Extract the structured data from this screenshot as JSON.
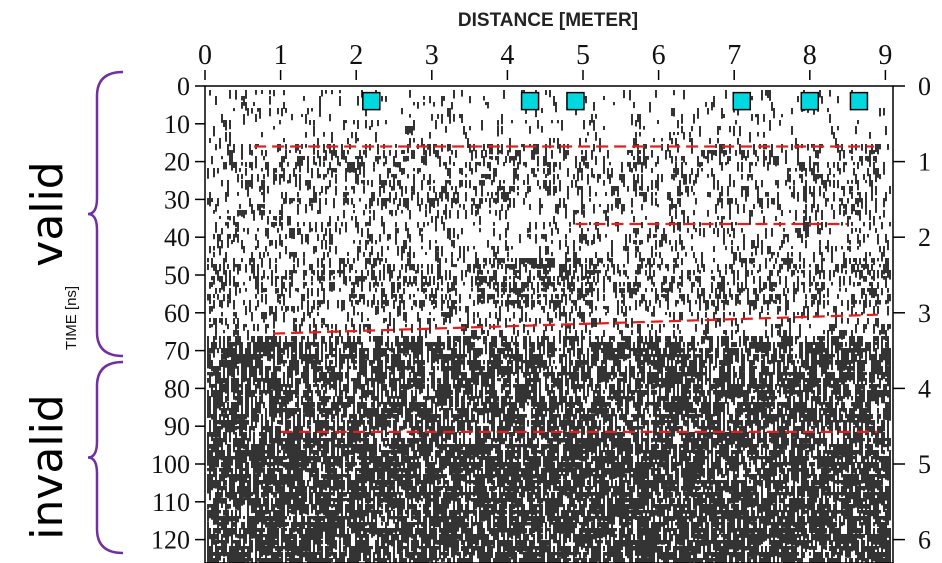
{
  "chart_data": {
    "type": "radargram",
    "xlabel": "DISTANCE [METER]",
    "ylabel": "TIME [ns]",
    "xlim": [
      0,
      9
    ],
    "ylim": [
      0,
      120
    ],
    "x_ticks": [
      "0",
      "1",
      "2",
      "3",
      "4",
      "5",
      "6",
      "7",
      "8",
      "9"
    ],
    "y_ticks": [
      "0",
      "10",
      "20",
      "30",
      "40",
      "50",
      "60",
      "70",
      "80",
      "90",
      "100",
      "110",
      "120"
    ],
    "right_ticks": [
      {
        "label": "0",
        "y": 0
      },
      {
        "label": "1",
        "y": 20
      },
      {
        "label": "2",
        "y": 40
      },
      {
        "label": "3",
        "y": 60
      },
      {
        "label": "4",
        "y": 80
      },
      {
        "label": "5",
        "y": 100
      },
      {
        "label": "6",
        "y": 120
      }
    ],
    "markers": {
      "color": "#00d8e0",
      "y": 4,
      "x": [
        2.2,
        4.3,
        4.9,
        7.1,
        8.0,
        8.65
      ]
    },
    "reference_lines": {
      "color": "#e02020",
      "style": "dashed",
      "lines": [
        {
          "x": [
            0.65,
            8.85
          ],
          "y": [
            16,
            16
          ]
        },
        {
          "x": [
            4.9,
            8.5
          ],
          "y": [
            36.5,
            36.5
          ]
        },
        {
          "x": [
            0.9,
            8.9
          ],
          "y": [
            65.5,
            60.5
          ]
        },
        {
          "x": [
            1.0,
            8.9
          ],
          "y": [
            91.5,
            91.5
          ]
        }
      ]
    },
    "regions": [
      {
        "label": "valid",
        "y_range": [
          0,
          68
        ]
      },
      {
        "label": "invalid",
        "y_range": [
          68,
          120
        ]
      }
    ],
    "bracket_color": "#7030a0"
  }
}
